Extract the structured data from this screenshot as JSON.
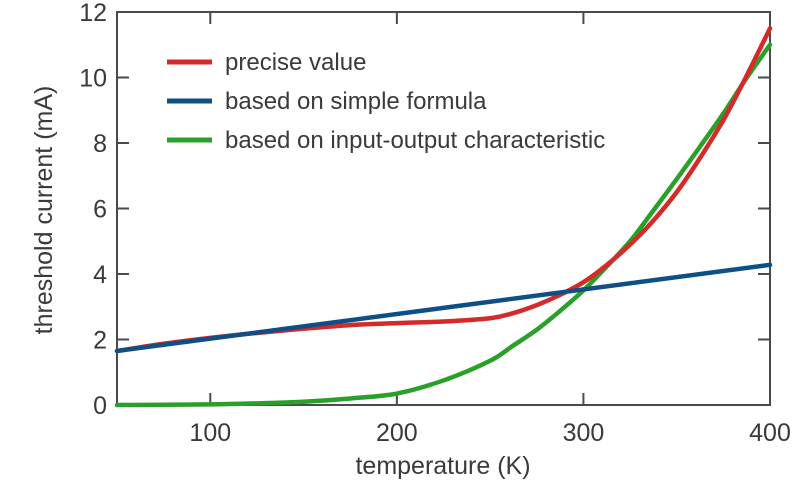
{
  "chart_data": {
    "type": "line",
    "title": "",
    "xlabel": "temperature (K)",
    "ylabel": "threshold current (mA)",
    "xlim": [
      50,
      400
    ],
    "ylim": [
      0,
      12
    ],
    "xticks": [
      100,
      200,
      300,
      400
    ],
    "yticks": [
      0,
      2,
      4,
      6,
      8,
      10,
      12
    ],
    "grid": false,
    "legend_position": "top-left",
    "series": [
      {
        "name": "precise value",
        "color": "#d42a2a",
        "x": [
          50,
          75,
          100,
          125,
          150,
          175,
          200,
          225,
          250,
          262,
          275,
          287,
          300,
          312,
          325,
          337,
          350,
          362,
          375,
          387,
          400
        ],
        "y": [
          1.65,
          1.87,
          2.05,
          2.2,
          2.33,
          2.44,
          2.5,
          2.55,
          2.65,
          2.8,
          3.05,
          3.35,
          3.75,
          4.25,
          4.9,
          5.6,
          6.5,
          7.5,
          8.7,
          10.0,
          11.5
        ]
      },
      {
        "name": "based on simple formula",
        "color": "#0e4f86",
        "x": [
          50,
          400
        ],
        "y": [
          1.65,
          4.28
        ]
      },
      {
        "name": "based on input-output characteristic",
        "color": "#2aa02a",
        "x": [
          50,
          100,
          125,
          150,
          175,
          200,
          225,
          250,
          262,
          275,
          287,
          300,
          312,
          325,
          337,
          350,
          362,
          375,
          387,
          400
        ],
        "y": [
          0,
          0.02,
          0.05,
          0.1,
          0.2,
          0.35,
          0.75,
          1.35,
          1.8,
          2.3,
          2.85,
          3.5,
          4.2,
          5.0,
          5.9,
          6.9,
          7.85,
          8.9,
          9.95,
          11.0
        ]
      }
    ]
  }
}
